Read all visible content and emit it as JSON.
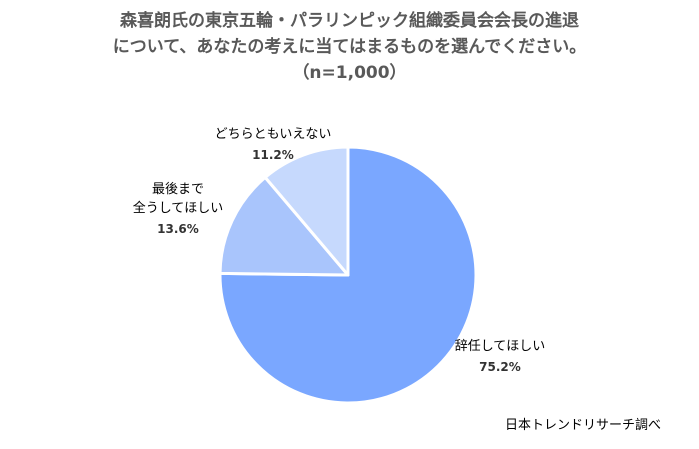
{
  "title_lines": [
    "森喜朗氏の東京五輪・パラリンピック組織委員会会長の進退",
    "について、あなたの考えに当てはまるものを選んでください。",
    "（n=1,000）"
  ],
  "source": "日本トレンドリサーチ調べ",
  "chart_data": {
    "type": "pie",
    "title": "森喜朗氏の東京五輪・パラリンピック組織委員会会長の進退について、あなたの考えに当てはまるものを選んでください。（n=1,000）",
    "slices": [
      {
        "label_lines": [
          "辞任してほしい"
        ],
        "value": 75.2,
        "value_label": "75.2%",
        "color": "#7aa7ff"
      },
      {
        "label_lines": [
          "最後まで",
          "全うしてほしい"
        ],
        "value": 13.6,
        "value_label": "13.6%",
        "color": "#a9c5fc"
      },
      {
        "label_lines": [
          "どちらともいえない"
        ],
        "value": 11.2,
        "value_label": "11.2%",
        "color": "#c6d9fd"
      }
    ],
    "start": "12 o'clock",
    "direction": "clockwise",
    "legend": "none"
  }
}
